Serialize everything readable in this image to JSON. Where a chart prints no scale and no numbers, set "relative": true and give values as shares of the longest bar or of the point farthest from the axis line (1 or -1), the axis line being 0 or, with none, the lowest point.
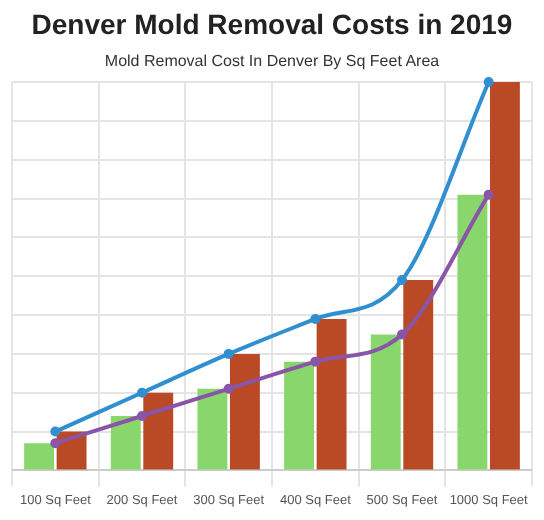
{
  "chart_data": {
    "type": "bar",
    "title": "Denver Mold Removal Costs in 2019",
    "subtitle": "Mold Removal Cost In Denver By Sq Feet Area",
    "categories": [
      "100 Sq Feet",
      "200 Sq Feet",
      "300 Sq Feet",
      "400 Sq Feet",
      "500 Sq Feet",
      "1000 Sq Feet"
    ],
    "relative": true,
    "grid": true,
    "legend": false,
    "marker": "circle",
    "series": [
      {
        "type": "line",
        "color": "#2f8fd0",
        "values": [
          0.1,
          0.2,
          0.3,
          0.39,
          0.49,
          1
        ]
      },
      {
        "type": "line",
        "color": "#8a55a8",
        "values": [
          0.07,
          0.14,
          0.21,
          0.28,
          0.35,
          0.71
        ]
      },
      {
        "color": "#88d66c",
        "values": [
          0.07,
          0.14,
          0.21,
          0.28,
          0.35,
          0.71
        ]
      },
      {
        "color": "#b94a25",
        "values": [
          0.1,
          0.2,
          0.3,
          0.39,
          0.49,
          1
        ]
      }
    ]
  }
}
